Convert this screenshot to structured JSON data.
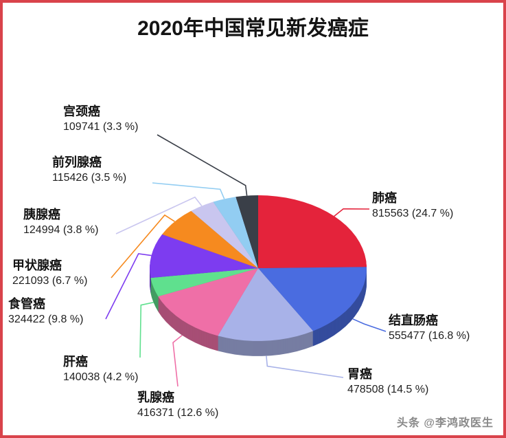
{
  "title": "2020年中国常见新发癌症",
  "watermark": {
    "text": "头条 @李鸿政医生"
  },
  "chart_data": {
    "type": "pie",
    "style": "3d",
    "title": "2020年中国常见新发癌症",
    "label_position": "outside-with-leader-lines",
    "legend": "none",
    "start_angle_deg_from_top": 0,
    "direction": "clockwise",
    "slices": [
      {
        "name": "肺癌",
        "value": 815563,
        "pct": 24.7,
        "display": "815563 (24.7 %)",
        "color": "#e4233b"
      },
      {
        "name": "结直肠癌",
        "value": 555477,
        "pct": 16.8,
        "display": "555477 (16.8 %)",
        "color": "#4a6ce0"
      },
      {
        "name": "胃癌",
        "value": 478508,
        "pct": 14.5,
        "display": "478508 (14.5 %)",
        "color": "#a8b2e8"
      },
      {
        "name": "乳腺癌",
        "value": 416371,
        "pct": 12.6,
        "display": "416371 (12.6 %)",
        "color": "#ef6fa7"
      },
      {
        "name": "肝癌",
        "value": 140038,
        "pct": 4.2,
        "display": "140038 (4.2 %)",
        "color": "#5fe08e"
      },
      {
        "name": "食管癌",
        "value": 324422,
        "pct": 9.8,
        "display": "324422 (9.8 %)",
        "color": "#7d3cf0"
      },
      {
        "name": "甲状腺癌",
        "value": 221093,
        "pct": 6.7,
        "display": "221093 (6.7 %)",
        "color": "#f68a1f"
      },
      {
        "name": "胰腺癌",
        "value": 124994,
        "pct": 3.8,
        "display": "124994 (3.8 %)",
        "color": "#c9c6ef"
      },
      {
        "name": "前列腺癌",
        "value": 115426,
        "pct": 3.5,
        "display": "115426 (3.5 %)",
        "color": "#92cdf2"
      },
      {
        "name": "宫颈癌",
        "value": 109741,
        "pct": 3.3,
        "display": "109741 (3.3 %)",
        "color": "#3a3f48"
      }
    ]
  }
}
